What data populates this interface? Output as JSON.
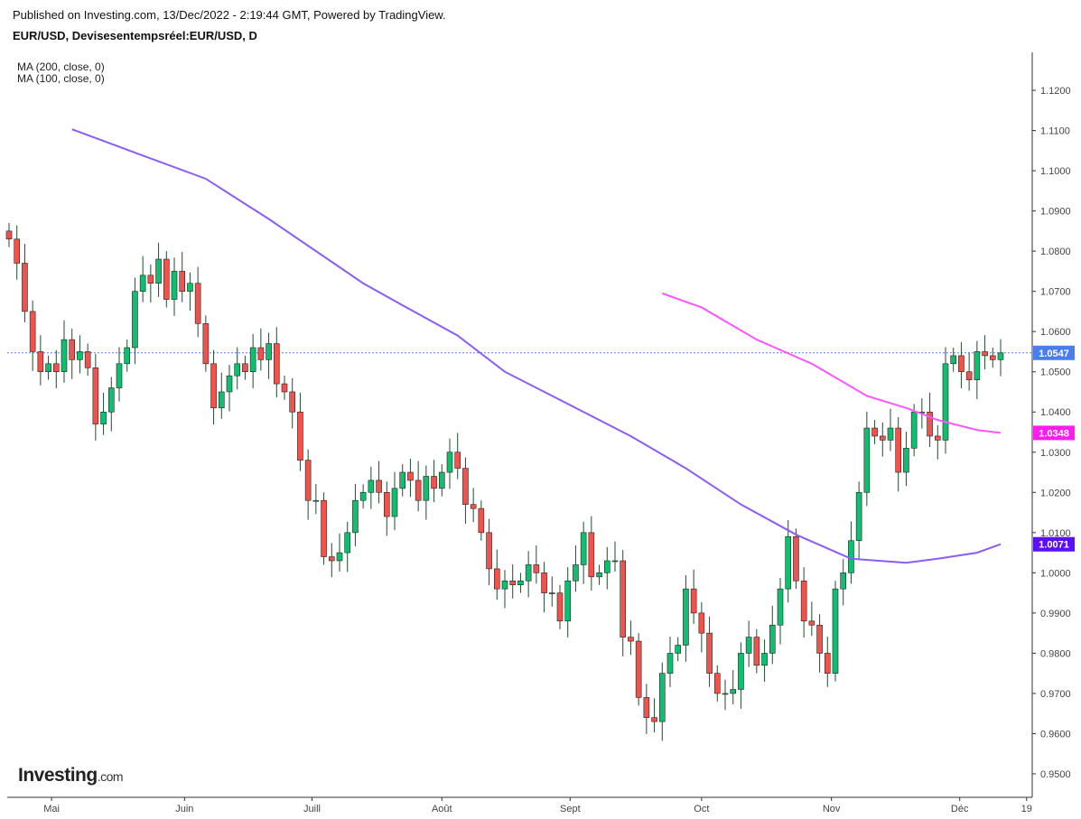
{
  "header": {
    "published": "Published on Investing.com, 13/Dec/2022 - 2:19:44 GMT, Powered by TradingView.",
    "symbol": "EUR/USD, Devisesentempsréel:EUR/USD, D"
  },
  "legend": {
    "ma200": "MA (200, close, 0)",
    "ma100": "MA (100, close, 0)"
  },
  "logo": {
    "main": "Investing",
    "suffix": ".com"
  },
  "colors": {
    "up": "#0fbf6f",
    "down": "#f0534c",
    "wick": "#1f4d2e",
    "ma200": "#8b5cf6",
    "ma100": "#ff55ff",
    "last": "#4a7ef0",
    "tag200": "#5b0ff5",
    "tag100": "#ff1cf0"
  },
  "chart_data": {
    "type": "candlestick",
    "title": "EUR/USD, D",
    "ylim": [
      0.945,
      1.1275
    ],
    "yticks": [
      "1.1200",
      "1.1100",
      "1.1000",
      "1.0900",
      "1.0800",
      "1.0700",
      "1.0600",
      "1.0500",
      "1.0400",
      "1.0300",
      "1.0200",
      "1.0100",
      "1.0000",
      "0.9900",
      "0.9800",
      "0.9700",
      "0.9600",
      "0.9500"
    ],
    "xticks": [
      {
        "label": "Mai",
        "day": 5.4
      },
      {
        "label": "Juin",
        "day": 22.3
      },
      {
        "label": "Juill",
        "day": 38.5
      },
      {
        "label": "Août",
        "day": 55
      },
      {
        "label": "Sept",
        "day": 71.3
      },
      {
        "label": "Oct",
        "day": 88
      },
      {
        "label": "Nov",
        "day": 104.5
      },
      {
        "label": "Déc",
        "day": 120.8
      },
      {
        "label": "19",
        "day": 129.3
      }
    ],
    "close": [
      1.083,
      1.077,
      1.065,
      1.055,
      1.05,
      1.052,
      1.05,
      1.058,
      1.053,
      1.055,
      1.051,
      1.037,
      1.04,
      1.046,
      1.052,
      1.056,
      1.07,
      1.074,
      1.072,
      1.078,
      1.068,
      1.075,
      1.07,
      1.072,
      1.062,
      1.052,
      1.041,
      1.045,
      1.049,
      1.052,
      1.05,
      1.056,
      1.053,
      1.057,
      1.047,
      1.045,
      1.04,
      1.028,
      1.018,
      1.018,
      1.004,
      1.003,
      1.005,
      1.01,
      1.018,
      1.02,
      1.023,
      1.02,
      1.014,
      1.021,
      1.025,
      1.023,
      1.018,
      1.024,
      1.021,
      1.025,
      1.03,
      1.026,
      1.017,
      1.016,
      1.01,
      1.001,
      0.996,
      0.998,
      0.997,
      0.998,
      1.002,
      1.0,
      0.995,
      0.995,
      0.988,
      0.998,
      1.002,
      1.01,
      0.999,
      1.0,
      1.003,
      1.003,
      0.984,
      0.983,
      0.969,
      0.964,
      0.963,
      0.975,
      0.98,
      0.982,
      0.996,
      0.99,
      0.985,
      0.975,
      0.97,
      0.97,
      0.971,
      0.98,
      0.984,
      0.977,
      0.98,
      0.987,
      0.996,
      1.009,
      0.998,
      0.988,
      0.987,
      0.98,
      0.975,
      0.996,
      1.0,
      1.008,
      1.02,
      1.036,
      1.034,
      1.033,
      1.036,
      1.025,
      1.031,
      1.04,
      1.04,
      1.034,
      1.033,
      1.052,
      1.054,
      1.05,
      1.048,
      1.055,
      1.054,
      1.053,
      1.0547
    ],
    "series": [
      {
        "name": "MA (200, close, 0)",
        "last": "1.0071",
        "points": [
          [
            8,
            1.1103
          ],
          [
            16,
            1.1045
          ],
          [
            25,
            1.098
          ],
          [
            33,
            1.088
          ],
          [
            45,
            1.072
          ],
          [
            50.5,
            1.066
          ],
          [
            57,
            1.059
          ],
          [
            63,
            1.05
          ],
          [
            72,
            1.041
          ],
          [
            79,
            1.034
          ],
          [
            86,
            1.026
          ],
          [
            93,
            1.017
          ],
          [
            100,
            1.0095
          ],
          [
            107,
            1.0035
          ],
          [
            114,
            1.0025
          ],
          [
            118,
            1.0035
          ],
          [
            123,
            1.005
          ],
          [
            126,
            1.0071
          ]
        ]
      },
      {
        "name": "MA (100, close, 0)",
        "last": "1.0348",
        "points": [
          [
            83,
            1.0695
          ],
          [
            88,
            1.066
          ],
          [
            95,
            1.058
          ],
          [
            102,
            1.052
          ],
          [
            109,
            1.044
          ],
          [
            114,
            1.041
          ],
          [
            118,
            1.038
          ],
          [
            123,
            1.0355
          ],
          [
            126,
            1.0348
          ]
        ]
      }
    ],
    "last_price": "1.0547"
  }
}
